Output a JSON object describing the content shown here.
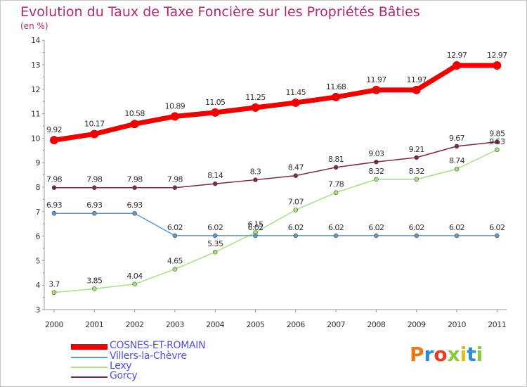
{
  "title": "Evolution du Taux de Taxe Foncière sur les Propriétés Bâties",
  "unit_label": "(en %)",
  "logo_text": "Proxiti",
  "chart_data": {
    "type": "line",
    "x": [
      "2000",
      "2001",
      "2002",
      "2003",
      "2004",
      "2005",
      "2006",
      "2007",
      "2008",
      "2009",
      "2010",
      "2011"
    ],
    "ylim": [
      3,
      14
    ],
    "yticks": [
      "3",
      "4",
      "5",
      "6",
      "7",
      "8",
      "9",
      "10",
      "11",
      "12",
      "13",
      "14"
    ],
    "grid": false,
    "legend_position": "bottom",
    "series": [
      {
        "name": "COSNES-ET-ROMAIN",
        "color": "#ee0000",
        "values": [
          9.92,
          10.17,
          10.58,
          10.89,
          11.05,
          11.25,
          11.45,
          11.68,
          11.97,
          11.97,
          12.97,
          12.97
        ],
        "labels": [
          "9.92",
          "10.17",
          "10.58",
          "10.89",
          "11.05",
          "11.25",
          "11.45",
          "11.68",
          "11.97",
          "11.97",
          "12.97",
          "12.97"
        ]
      },
      {
        "name": "Villers-la-Chèvre",
        "color": "#5a9acb",
        "values": [
          6.93,
          6.93,
          6.93,
          6.02,
          6.02,
          6.02,
          6.02,
          6.02,
          6.02,
          6.02,
          6.02,
          6.02
        ],
        "labels": [
          "6.93",
          "6.93",
          "6.93",
          "6.02",
          "6.02",
          "6.02",
          "6.02",
          "6.02",
          "6.02",
          "6.02",
          "6.02",
          "6.02"
        ]
      },
      {
        "name": "Lexy",
        "color": "#a8df82",
        "values": [
          3.7,
          3.85,
          4.04,
          4.65,
          5.35,
          6.15,
          7.07,
          7.78,
          8.32,
          8.32,
          8.74,
          9.53
        ],
        "labels": [
          "3.7",
          "3.85",
          "4.04",
          "4.65",
          "5.35",
          "6.15",
          "7.07",
          "7.78",
          "8.32",
          "8.32",
          "8.74",
          "9.53"
        ]
      },
      {
        "name": "Gorcy",
        "color": "#7a2a38",
        "values": [
          7.98,
          7.98,
          7.98,
          7.98,
          8.14,
          8.3,
          8.47,
          8.81,
          9.03,
          9.21,
          9.67,
          9.85
        ],
        "labels": [
          "7.98",
          "7.98",
          "7.98",
          "7.98",
          "8.14",
          "8.3",
          "8.47",
          "8.81",
          "9.03",
          "9.21",
          "9.67",
          "9.85"
        ]
      }
    ]
  }
}
